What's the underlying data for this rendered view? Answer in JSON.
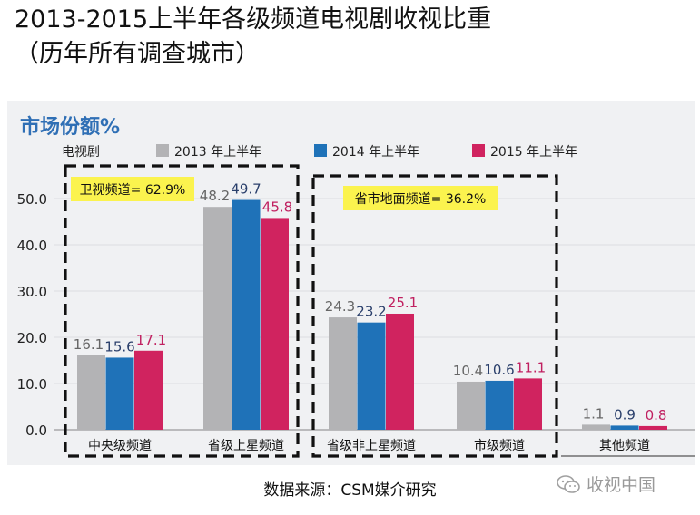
{
  "title_line1": "2013-2015上半年各级频道电视剧收视比重",
  "title_line2": "（历年所有调查城市）",
  "panel_title": "市场份额%",
  "source": "数据来源：CSM媒介研究",
  "watermark": "收视中国",
  "chart_data": {
    "type": "bar",
    "title": "市场份额%",
    "legend_title": "电视剧",
    "categories": [
      "中央级频道",
      "省级上星频道",
      "省级非上星频道",
      "市级频道",
      "其他频道"
    ],
    "series": [
      {
        "name": "2013 年上半年",
        "color": "#b3b3b5",
        "label_color": "#666666",
        "values": [
          16.1,
          48.2,
          24.3,
          10.4,
          1.1
        ]
      },
      {
        "name": "2014 年上半年",
        "color": "#1f72b8",
        "label_color": "#2a3f6b",
        "values": [
          15.6,
          49.7,
          23.2,
          10.6,
          0.9
        ]
      },
      {
        "name": "2015 年上半年",
        "color": "#d0235f",
        "label_color": "#c02060",
        "values": [
          17.1,
          45.8,
          25.1,
          11.1,
          0.8
        ]
      }
    ],
    "yticks": [
      "0.0",
      "10.0",
      "20.0",
      "30.0",
      "40.0",
      "50.0"
    ],
    "ylim": [
      0,
      50
    ],
    "groups": [
      {
        "label": "卫视频道= 62.9%"
      },
      {
        "label": "省市地面频道= 36.2%"
      }
    ]
  }
}
